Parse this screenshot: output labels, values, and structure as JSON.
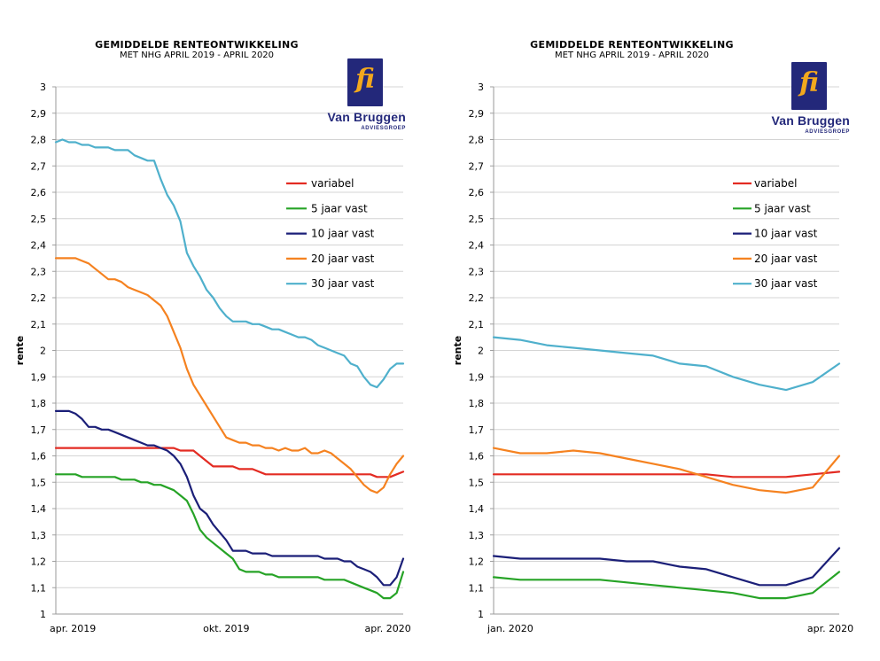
{
  "logo": {
    "name": "Van Bruggen",
    "sub": "ADVIESGROEP",
    "mark": "fi"
  },
  "chart_data": [
    {
      "type": "line",
      "title": "GEMIDDELDE RENTEONTWIKKELING",
      "subtitle": "MET NHG    APRIL 2019 - APRIL 2020",
      "xlabel": "",
      "ylabel": "rente",
      "ylim": [
        1,
        3
      ],
      "ytick_step": 0.1,
      "x_tick_labels": [
        "apr. 2019",
        "okt. 2019",
        "apr. 2020"
      ],
      "x_tick_positions": [
        0,
        26,
        52
      ],
      "xlim": [
        0,
        53
      ],
      "grid": true,
      "legend_position": "upper-right",
      "series": [
        {
          "name": "variabel",
          "color": "#e32b22",
          "x": [
            0,
            3,
            6,
            9,
            12,
            15,
            17,
            18,
            19,
            21,
            22,
            24,
            25,
            27,
            28,
            30,
            32,
            35,
            40,
            45,
            46,
            47,
            48,
            49,
            51,
            52,
            53
          ],
          "values": [
            1.63,
            1.63,
            1.63,
            1.63,
            1.63,
            1.63,
            1.63,
            1.63,
            1.62,
            1.62,
            1.6,
            1.56,
            1.56,
            1.56,
            1.55,
            1.55,
            1.53,
            1.53,
            1.53,
            1.53,
            1.53,
            1.53,
            1.53,
            1.52,
            1.52,
            1.53,
            1.54
          ]
        },
        {
          "name": "5 jaar vast",
          "color": "#26a326",
          "x": [
            0,
            1,
            2,
            3,
            4,
            5,
            6,
            7,
            8,
            9,
            10,
            11,
            12,
            13,
            14,
            15,
            16,
            17,
            18,
            19,
            20,
            21,
            22,
            23,
            24,
            25,
            26,
            27,
            28,
            29,
            30,
            31,
            32,
            33,
            34,
            35,
            36,
            37,
            38,
            39,
            40,
            41,
            42,
            43,
            44,
            45,
            46,
            47,
            48,
            49,
            50,
            51,
            52,
            53
          ],
          "values": [
            1.53,
            1.53,
            1.53,
            1.53,
            1.52,
            1.52,
            1.52,
            1.52,
            1.52,
            1.52,
            1.51,
            1.51,
            1.51,
            1.5,
            1.5,
            1.49,
            1.49,
            1.48,
            1.47,
            1.45,
            1.43,
            1.38,
            1.32,
            1.29,
            1.27,
            1.25,
            1.23,
            1.21,
            1.17,
            1.16,
            1.16,
            1.16,
            1.15,
            1.15,
            1.14,
            1.14,
            1.14,
            1.14,
            1.14,
            1.14,
            1.14,
            1.13,
            1.13,
            1.13,
            1.13,
            1.12,
            1.11,
            1.1,
            1.09,
            1.08,
            1.06,
            1.06,
            1.08,
            1.16
          ]
        },
        {
          "name": "10 jaar vast",
          "color": "#1b1f78",
          "x": [
            0,
            1,
            2,
            3,
            4,
            5,
            6,
            7,
            8,
            9,
            10,
            11,
            12,
            13,
            14,
            15,
            16,
            17,
            18,
            19,
            20,
            21,
            22,
            23,
            24,
            25,
            26,
            27,
            28,
            29,
            30,
            31,
            32,
            33,
            34,
            35,
            36,
            37,
            38,
            39,
            40,
            41,
            42,
            43,
            44,
            45,
            46,
            47,
            48,
            49,
            50,
            51,
            52,
            53
          ],
          "values": [
            1.77,
            1.77,
            1.77,
            1.76,
            1.74,
            1.71,
            1.71,
            1.7,
            1.7,
            1.69,
            1.68,
            1.67,
            1.66,
            1.65,
            1.64,
            1.64,
            1.63,
            1.62,
            1.6,
            1.57,
            1.52,
            1.45,
            1.4,
            1.38,
            1.34,
            1.31,
            1.28,
            1.24,
            1.24,
            1.24,
            1.23,
            1.23,
            1.23,
            1.22,
            1.22,
            1.22,
            1.22,
            1.22,
            1.22,
            1.22,
            1.22,
            1.21,
            1.21,
            1.21,
            1.2,
            1.2,
            1.18,
            1.17,
            1.16,
            1.14,
            1.11,
            1.11,
            1.14,
            1.21
          ]
        },
        {
          "name": "20 jaar vast",
          "color": "#f58220",
          "x": [
            0,
            1,
            2,
            3,
            4,
            5,
            6,
            7,
            8,
            9,
            10,
            11,
            12,
            13,
            14,
            15,
            16,
            17,
            18,
            19,
            20,
            21,
            22,
            23,
            24,
            25,
            26,
            27,
            28,
            29,
            30,
            31,
            32,
            33,
            34,
            35,
            36,
            37,
            38,
            39,
            40,
            41,
            42,
            43,
            44,
            45,
            46,
            47,
            48,
            49,
            50,
            51,
            52,
            53
          ],
          "values": [
            2.35,
            2.35,
            2.35,
            2.35,
            2.34,
            2.33,
            2.31,
            2.29,
            2.27,
            2.27,
            2.26,
            2.24,
            2.23,
            2.22,
            2.21,
            2.19,
            2.17,
            2.13,
            2.07,
            2.01,
            1.93,
            1.87,
            1.83,
            1.79,
            1.75,
            1.71,
            1.67,
            1.66,
            1.65,
            1.65,
            1.64,
            1.64,
            1.63,
            1.63,
            1.62,
            1.63,
            1.62,
            1.62,
            1.63,
            1.61,
            1.61,
            1.62,
            1.61,
            1.59,
            1.57,
            1.55,
            1.52,
            1.49,
            1.47,
            1.46,
            1.48,
            1.53,
            1.57,
            1.6
          ]
        },
        {
          "name": "30 jaar vast",
          "color": "#4fb0cc",
          "x": [
            0,
            1,
            2,
            3,
            4,
            5,
            6,
            7,
            8,
            9,
            10,
            11,
            12,
            13,
            14,
            15,
            16,
            17,
            18,
            19,
            20,
            21,
            22,
            23,
            24,
            25,
            26,
            27,
            28,
            29,
            30,
            31,
            32,
            33,
            34,
            35,
            36,
            37,
            38,
            39,
            40,
            41,
            42,
            43,
            44,
            45,
            46,
            47,
            48,
            49,
            50,
            51,
            52,
            53
          ],
          "values": [
            2.79,
            2.8,
            2.79,
            2.79,
            2.78,
            2.78,
            2.77,
            2.77,
            2.77,
            2.76,
            2.76,
            2.76,
            2.74,
            2.73,
            2.72,
            2.72,
            2.65,
            2.59,
            2.55,
            2.49,
            2.37,
            2.32,
            2.28,
            2.23,
            2.2,
            2.16,
            2.13,
            2.11,
            2.11,
            2.11,
            2.1,
            2.1,
            2.09,
            2.08,
            2.08,
            2.07,
            2.06,
            2.05,
            2.05,
            2.04,
            2.02,
            2.01,
            2.0,
            1.99,
            1.98,
            1.95,
            1.94,
            1.9,
            1.87,
            1.86,
            1.89,
            1.93,
            1.95,
            1.95
          ]
        }
      ]
    },
    {
      "type": "line",
      "title": "GEMIDDELDE RENTEONTWIKKELING",
      "subtitle": "MET NHG    APRIL 2019 - APRIL 2020",
      "xlabel": "",
      "ylabel": "rente",
      "ylim": [
        1,
        3
      ],
      "ytick_step": 0.1,
      "x_tick_labels": [
        "jan. 2020",
        "apr. 2020"
      ],
      "x_tick_positions": [
        0,
        13
      ],
      "xlim": [
        0,
        13
      ],
      "grid": true,
      "legend_position": "upper-right",
      "series": [
        {
          "name": "variabel",
          "color": "#e32b22",
          "x": [
            0,
            1,
            2,
            3,
            4,
            5,
            6,
            7,
            8,
            9,
            10,
            11,
            12,
            13
          ],
          "values": [
            1.53,
            1.53,
            1.53,
            1.53,
            1.53,
            1.53,
            1.53,
            1.53,
            1.53,
            1.52,
            1.52,
            1.52,
            1.53,
            1.54
          ]
        },
        {
          "name": "5 jaar vast",
          "color": "#26a326",
          "x": [
            0,
            1,
            2,
            3,
            4,
            5,
            6,
            7,
            8,
            9,
            10,
            11,
            12,
            13
          ],
          "values": [
            1.14,
            1.13,
            1.13,
            1.13,
            1.13,
            1.12,
            1.11,
            1.1,
            1.09,
            1.08,
            1.06,
            1.06,
            1.08,
            1.16
          ]
        },
        {
          "name": "10 jaar vast",
          "color": "#1b1f78",
          "x": [
            0,
            1,
            2,
            3,
            4,
            5,
            6,
            7,
            8,
            9,
            10,
            11,
            12,
            13
          ],
          "values": [
            1.22,
            1.21,
            1.21,
            1.21,
            1.21,
            1.2,
            1.2,
            1.18,
            1.17,
            1.14,
            1.11,
            1.11,
            1.14,
            1.25
          ]
        },
        {
          "name": "20 jaar vast",
          "color": "#f58220",
          "x": [
            0,
            1,
            2,
            3,
            4,
            5,
            6,
            7,
            8,
            9,
            10,
            11,
            12,
            13
          ],
          "values": [
            1.63,
            1.61,
            1.61,
            1.62,
            1.61,
            1.59,
            1.57,
            1.55,
            1.52,
            1.49,
            1.47,
            1.46,
            1.48,
            1.6
          ]
        },
        {
          "name": "30 jaar vast",
          "color": "#4fb0cc",
          "x": [
            0,
            1,
            2,
            3,
            4,
            5,
            6,
            7,
            8,
            9,
            10,
            11,
            12,
            13
          ],
          "values": [
            2.05,
            2.04,
            2.02,
            2.01,
            2.0,
            1.99,
            1.98,
            1.95,
            1.94,
            1.9,
            1.87,
            1.85,
            1.88,
            1.95
          ]
        }
      ]
    }
  ]
}
